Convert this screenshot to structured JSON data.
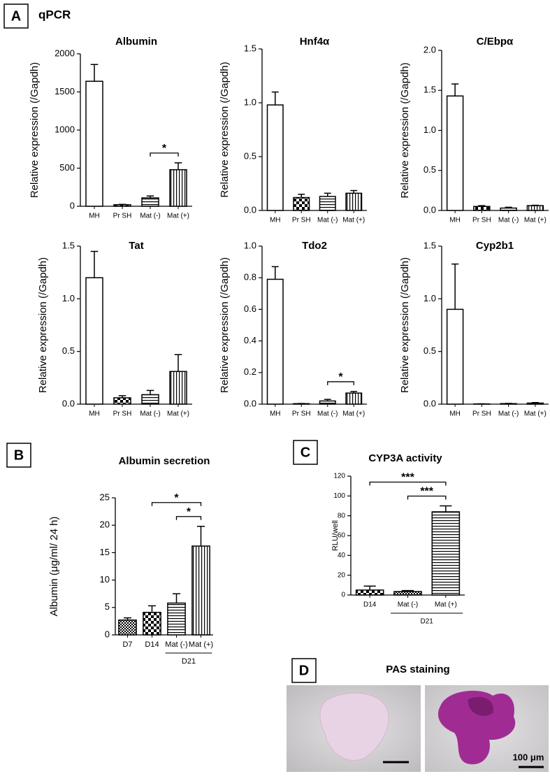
{
  "labels": {
    "panel_a": "A",
    "qpcr": "qPCR",
    "panel_b": "B",
    "panel_c": "C",
    "panel_d": "D",
    "pas": "PAS staining",
    "scale": "100 μm"
  },
  "chart_data": [
    {
      "type": "bar",
      "title": "Albumin",
      "ylabel": "Relative expression (/Gapdh)",
      "categories": [
        "MH",
        "Pr SH",
        "Mat (-)",
        "Mat (+)"
      ],
      "values": [
        1640,
        20,
        110,
        480
      ],
      "errors": [
        220,
        5,
        25,
        90
      ],
      "patterns": [
        "none",
        "checker",
        "hlines",
        "vlines"
      ],
      "ylim": [
        0,
        2000
      ],
      "yticks": [
        0,
        500,
        1000,
        1500,
        2000
      ],
      "brackets": [
        {
          "between": [
            "Mat (-)",
            "Mat (+)"
          ],
          "label": "*"
        }
      ]
    },
    {
      "type": "bar",
      "title": "Hnf4α",
      "ylabel": "Relative expression (/Gapdh)",
      "categories": [
        "MH",
        "Pr SH",
        "Mat (-)",
        "Mat (+)"
      ],
      "values": [
        0.98,
        0.12,
        0.13,
        0.16
      ],
      "errors": [
        0.12,
        0.03,
        0.03,
        0.025
      ],
      "patterns": [
        "none",
        "checker",
        "hlines",
        "vlines"
      ],
      "ylim": [
        0,
        1.5
      ],
      "yticks": [
        {
          "value": 0,
          "label": "0.0"
        },
        0.5,
        {
          "value": 1,
          "label": "1.0"
        },
        1.5
      ]
    },
    {
      "type": "bar",
      "title": "C/Ebpα",
      "ylabel": "Relative expression (/Gapdh)",
      "categories": [
        "MH",
        "Pr SH",
        "Mat (-)",
        "Mat (+)"
      ],
      "values": [
        1.43,
        0.05,
        0.03,
        0.06
      ],
      "errors": [
        0.15,
        0.01,
        0.01,
        0.005
      ],
      "patterns": [
        "none",
        "checker",
        "hlines",
        "vlines"
      ],
      "ylim": [
        0,
        2
      ],
      "yticks": [
        {
          "value": 0,
          "label": "0.0"
        },
        0.5,
        {
          "value": 1,
          "label": "1.0"
        },
        1.5,
        {
          "value": 2,
          "label": "2.0"
        }
      ]
    },
    {
      "type": "bar",
      "title": "Tat",
      "ylabel": "Relative expression (/Gapdh)",
      "categories": [
        "MH",
        "Pr SH",
        "Mat (-)",
        "Mat (+)"
      ],
      "values": [
        1.2,
        0.06,
        0.09,
        0.31
      ],
      "errors": [
        0.25,
        0.02,
        0.04,
        0.16
      ],
      "patterns": [
        "none",
        "checker",
        "hlines",
        "vlines"
      ],
      "ylim": [
        0,
        1.5
      ],
      "yticks": [
        {
          "value": 0,
          "label": "0.0"
        },
        0.5,
        {
          "value": 1,
          "label": "1.0"
        },
        1.5
      ]
    },
    {
      "type": "bar",
      "title": "Tdo2",
      "ylabel": "Relative expression (/Gapdh)",
      "categories": [
        "MH",
        "Pr SH",
        "Mat (-)",
        "Mat (+)"
      ],
      "values": [
        0.79,
        0.003,
        0.02,
        0.07
      ],
      "errors": [
        0.08,
        0.001,
        0.01,
        0.01
      ],
      "patterns": [
        "none",
        "checker",
        "hlines",
        "vlines"
      ],
      "ylim": [
        0,
        1
      ],
      "yticks": [
        {
          "value": 0,
          "label": "0.0"
        },
        0.2,
        0.4,
        0.6,
        0.8,
        {
          "value": 1,
          "label": "1.0"
        }
      ],
      "brackets": [
        {
          "between": [
            "Mat (-)",
            "Mat (+)"
          ],
          "label": "*"
        }
      ]
    },
    {
      "type": "bar",
      "title": "Cyp2b1",
      "ylabel": "Relative expression (/Gapdh)",
      "categories": [
        "MH",
        "Pr SH",
        "Mat (-)",
        "Mat (+)"
      ],
      "values": [
        0.9,
        0.002,
        0.005,
        0.01
      ],
      "errors": [
        0.43,
        0.001,
        0.002,
        0.005
      ],
      "patterns": [
        "none",
        "checker",
        "hlines",
        "vlines"
      ],
      "ylim": [
        0,
        1.5
      ],
      "yticks": [
        {
          "value": 0,
          "label": "0.0"
        },
        0.5,
        {
          "value": 1,
          "label": "1.0"
        },
        1.5
      ]
    },
    {
      "type": "bar",
      "title": "Albumin secretion",
      "ylabel": "Albumin (μg/ml/ 24 h)",
      "categories": [
        "D7",
        "D14",
        "Mat (-)",
        "Mat (+)"
      ],
      "values": [
        2.7,
        4.1,
        5.8,
        16.2
      ],
      "errors": [
        0.4,
        1.2,
        1.7,
        3.6
      ],
      "patterns": [
        "dense",
        "checker",
        "hlines",
        "vlines"
      ],
      "ylim": [
        0,
        25
      ],
      "yticks": [
        0,
        5,
        10,
        15,
        20,
        25
      ],
      "brackets": [
        {
          "between": [
            "Mat (-)",
            "Mat (+)"
          ],
          "label": "*"
        },
        {
          "between": [
            "D14",
            "Mat (+)"
          ],
          "label": "*"
        }
      ],
      "group": {
        "label": "D21",
        "categories": [
          "Mat (-)",
          "Mat (+)"
        ]
      }
    },
    {
      "type": "bar",
      "title": "CYP3A activity",
      "ylabel": "RLU/well",
      "categories": [
        "D14",
        "Mat (-)",
        "Mat (+)"
      ],
      "values": [
        5,
        3.5,
        84
      ],
      "errors": [
        4,
        1,
        6
      ],
      "patterns": [
        "checker",
        "dense",
        "hlines"
      ],
      "ylim": [
        0,
        120
      ],
      "yticks": [
        0,
        20,
        40,
        60,
        80,
        100,
        120
      ],
      "brackets": [
        {
          "between": [
            "Mat (-)",
            "Mat (+)"
          ],
          "label": "***"
        },
        {
          "between": [
            "D14",
            "Mat (+)"
          ],
          "label": "***"
        }
      ],
      "group": {
        "label": "D21",
        "categories": [
          "Mat (-)",
          "Mat (+)"
        ]
      }
    }
  ]
}
